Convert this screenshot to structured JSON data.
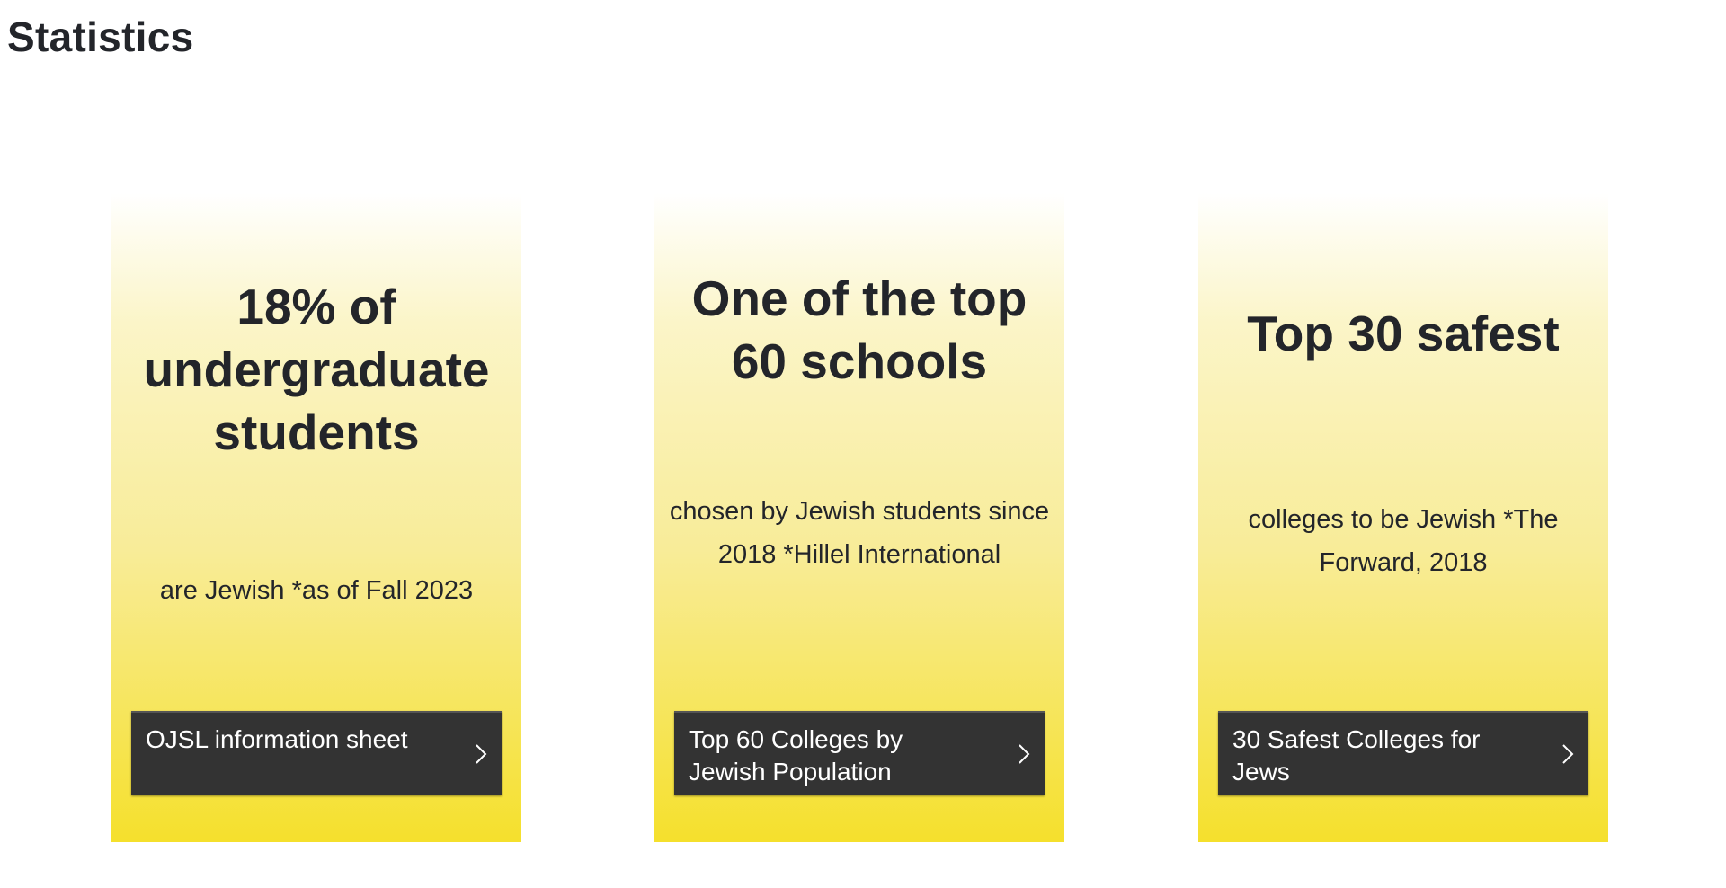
{
  "section": {
    "title": "Statistics"
  },
  "cards": [
    {
      "headline": "18% of undergraduate students",
      "subtext": "are Jewish *as of Fall 2023",
      "button": "OJSL information sheet",
      "button_icon": "chevron-right-icon"
    },
    {
      "headline": "One of the top 60 schools",
      "subtext": "chosen by Jewish students since 2018 *Hillel International",
      "button": "Top 60 Colleges by Jewish Population",
      "button_icon": "chevron-right-icon"
    },
    {
      "headline": "Top 30 safest",
      "subtext": "colleges to be Jewish *The Forward, 2018",
      "button": "30 Safest Colleges for Jews",
      "button_icon": "chevron-right-icon"
    }
  ],
  "colors": {
    "card_top": "#ffffff",
    "card_bottom": "#f5e02c",
    "button_bg": "#333333",
    "text": "#23252a"
  }
}
